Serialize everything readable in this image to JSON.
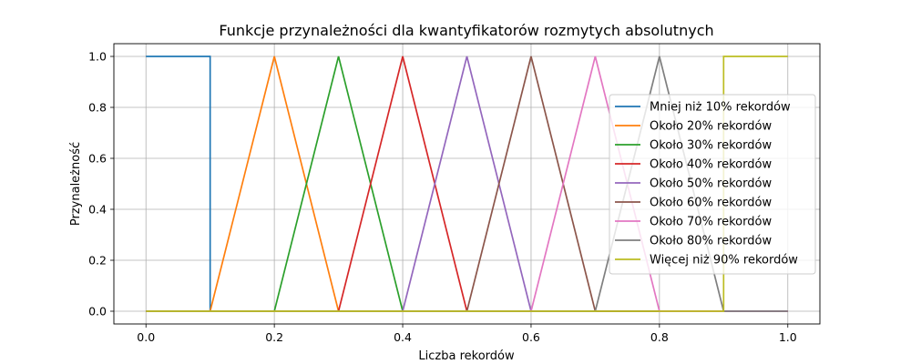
{
  "chart_data": {
    "type": "line",
    "title": "Funkcje przynależności dla kwantyfikatorów rozmytych absolutnych",
    "xlabel": "Liczba rekordów",
    "ylabel": "Przynależność",
    "xlim": [
      -0.05,
      1.05
    ],
    "ylim": [
      -0.05,
      1.05
    ],
    "xticks": [
      "0.0",
      "0.2",
      "0.4",
      "0.6",
      "0.8",
      "1.0"
    ],
    "yticks": [
      "0.0",
      "0.2",
      "0.4",
      "0.6",
      "0.8",
      "1.0"
    ],
    "grid": true,
    "legend_position": "right",
    "series": [
      {
        "name": "Mniej niż 10% rekordów",
        "color": "#1f77b4",
        "x": [
          0,
          0.1,
          0.1,
          1.0
        ],
        "y": [
          1,
          1,
          0,
          0
        ]
      },
      {
        "name": "Około 20% rekordów",
        "color": "#ff7f0e",
        "x": [
          0,
          0.1,
          0.2,
          0.3,
          1.0
        ],
        "y": [
          0,
          0,
          1,
          0,
          0
        ]
      },
      {
        "name": "Około 30% rekordów",
        "color": "#2ca02c",
        "x": [
          0,
          0.2,
          0.3,
          0.4,
          1.0
        ],
        "y": [
          0,
          0,
          1,
          0,
          0
        ]
      },
      {
        "name": "Około 40% rekordów",
        "color": "#d62728",
        "x": [
          0,
          0.3,
          0.4,
          0.5,
          1.0
        ],
        "y": [
          0,
          0,
          1,
          0,
          0
        ]
      },
      {
        "name": "Około 50% rekordów",
        "color": "#9467bd",
        "x": [
          0,
          0.4,
          0.5,
          0.6,
          1.0
        ],
        "y": [
          0,
          0,
          1,
          0,
          0
        ]
      },
      {
        "name": "Około 60% rekordów",
        "color": "#8c564b",
        "x": [
          0,
          0.5,
          0.6,
          0.7,
          1.0
        ],
        "y": [
          0,
          0,
          1,
          0,
          0
        ]
      },
      {
        "name": "Około 70% rekordów",
        "color": "#e377c2",
        "x": [
          0,
          0.6,
          0.7,
          0.8,
          1.0
        ],
        "y": [
          0,
          0,
          1,
          0,
          0
        ]
      },
      {
        "name": "Około 80% rekordów",
        "color": "#7f7f7f",
        "x": [
          0,
          0.7,
          0.8,
          0.9,
          1.0
        ],
        "y": [
          0,
          0,
          1,
          0,
          0
        ]
      },
      {
        "name": "Więcej niż 90% rekordów",
        "color": "#bcbd22",
        "x": [
          0,
          0.9,
          0.9,
          1.0
        ],
        "y": [
          0,
          0,
          1,
          1
        ]
      }
    ]
  }
}
